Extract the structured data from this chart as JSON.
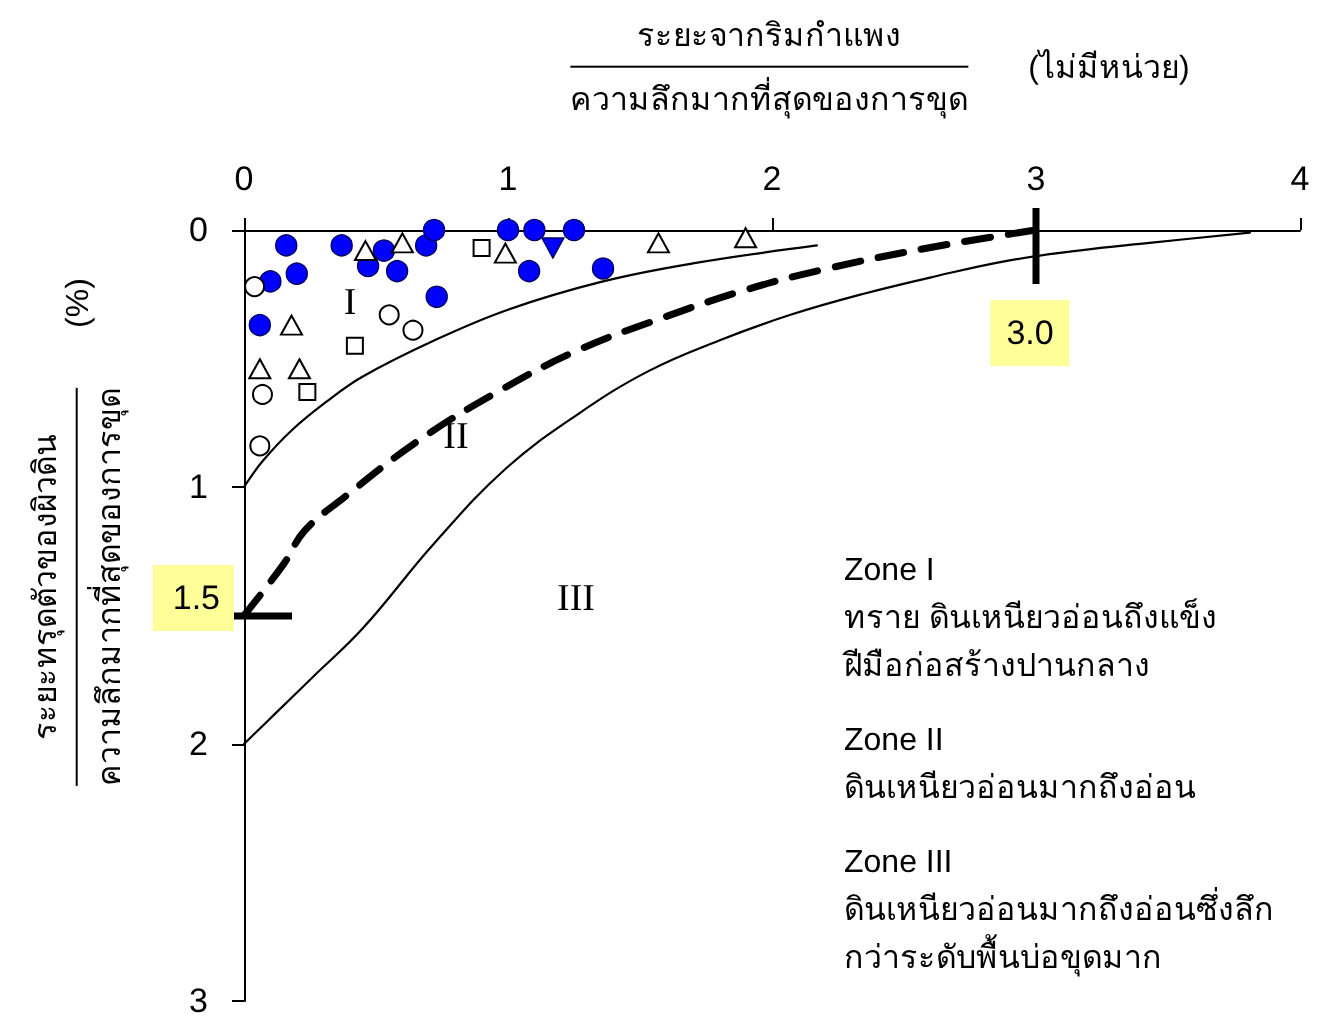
{
  "chart_data": {
    "type": "scatter",
    "xlabel": "ระยะจากริมกำแพง\nความลึกมากที่สุดของการขุด\n(ไม่มีหน่วย)",
    "ylabel": "ระยะทรุดตัวของผิวดิน\nความลึกมากที่สุดของการขุด\n(%)",
    "xlim": [
      0,
      4
    ],
    "xticks": [
      0,
      1,
      2,
      3,
      4
    ],
    "ylim": [
      3,
      0
    ],
    "yticks": [
      0,
      1,
      2,
      3
    ],
    "series": [
      {
        "marker": "circle",
        "color": "#0000ff",
        "x": [
          0.16,
          0.37,
          0.53,
          0.47,
          0.58,
          0.69,
          0.72,
          0.73,
          0.2,
          0.1,
          0.06,
          1.0,
          1.1,
          1.25,
          1.08,
          1.36
        ],
        "values": [
          0.06,
          0.06,
          0.08,
          0.14,
          0.16,
          0.06,
          0.0,
          0.26,
          0.17,
          0.2,
          0.37,
          0.0,
          0.0,
          0.0,
          0.16,
          0.15
        ]
      },
      {
        "marker": "triangle-down",
        "color": "#0000ff",
        "x": [
          1.17
        ],
        "values": [
          0.07
        ]
      },
      {
        "marker": "triangle-open",
        "color": "#000000",
        "x": [
          0.46,
          0.6,
          0.99,
          1.57,
          1.9,
          0.18,
          0.06,
          0.21
        ],
        "values": [
          0.08,
          0.05,
          0.09,
          0.05,
          0.03,
          0.37,
          0.54,
          0.54
        ]
      },
      {
        "marker": "square-open",
        "color": "#000000",
        "x": [
          0.9,
          0.42,
          0.24
        ],
        "values": [
          0.07,
          0.45,
          0.63
        ]
      },
      {
        "marker": "circle-open",
        "color": "#000000",
        "x": [
          0.04,
          0.07,
          0.06,
          0.64,
          0.55
        ],
        "values": [
          0.22,
          0.64,
          0.84,
          0.39,
          0.33
        ]
      },
      {
        "type": "line",
        "marker": "none",
        "line_style": "solid",
        "color": "#000000",
        "x": [
          0,
          0.07,
          0.18,
          0.31,
          0.45,
          0.72,
          1.0,
          1.36,
          1.7,
          2.17
        ],
        "values": [
          1.0,
          0.9,
          0.78,
          0.67,
          0.57,
          0.43,
          0.31,
          0.2,
          0.13,
          0.06
        ]
      },
      {
        "type": "line",
        "marker": "none",
        "line_style": "solid",
        "color": "#000000",
        "x": [
          0,
          0.12,
          0.26,
          0.45,
          0.72,
          0.99,
          1.26,
          1.53,
          1.8,
          2.07,
          2.34,
          2.62,
          2.89,
          3.16,
          3.43,
          3.81
        ],
        "values": [
          2.0,
          1.88,
          1.74,
          1.55,
          1.22,
          0.93,
          0.72,
          0.55,
          0.43,
          0.33,
          0.25,
          0.18,
          0.12,
          0.08,
          0.05,
          0.01
        ]
      },
      {
        "type": "line",
        "marker": "none",
        "line_style": "dashed",
        "color": "#000000",
        "x": [
          0,
          0.15,
          0.23,
          0.38,
          0.66,
          0.96,
          1.26,
          1.59,
          1.91,
          2.21,
          2.59,
          3.0
        ],
        "values": [
          1.5,
          1.3,
          1.17,
          1.04,
          0.82,
          0.63,
          0.47,
          0.34,
          0.23,
          0.15,
          0.07,
          0.0
        ]
      }
    ],
    "annotations": [
      "I",
      "II",
      "III",
      {
        "text": "1.5",
        "x": 0,
        "y": 1.5
      },
      {
        "text": "3.0",
        "x": 3,
        "y": 0
      },
      "Zone I\nทราย ดินเหนียวอ่อนถึงแข็ง\nฝีมือก่อสร้างปานกลาง",
      "Zone II\nดินเหนียวอ่อนมากถึงอ่อน",
      "Zone III\nดินเหนียวอ่อนมากถึงอ่อนซึ่งลึก\nกว่าระดับพื้นบ่อขุดมาก"
    ]
  }
}
